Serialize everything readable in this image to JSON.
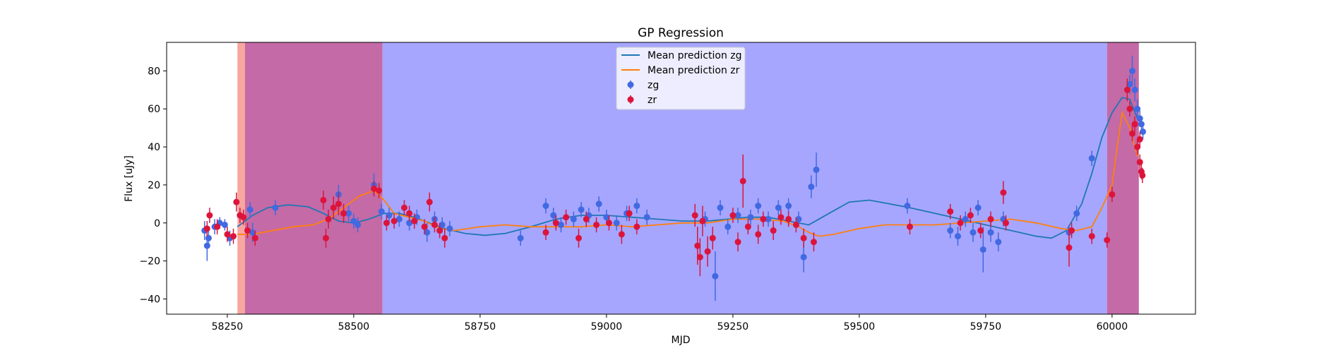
{
  "chart_data": {
    "type": "line",
    "title": "GP Regression",
    "xlabel": "MJD",
    "ylabel": "Flux [uJy]",
    "xlim": [
      58130,
      60165
    ],
    "ylim": [
      -48,
      95
    ],
    "xticks": [
      58250,
      58500,
      58750,
      59000,
      59250,
      59500,
      59750,
      60000
    ],
    "yticks": [
      -40,
      -20,
      0,
      20,
      40,
      60,
      80
    ],
    "grid": false,
    "legend_position": "top-center",
    "colors": {
      "zg_line": "#1f77b4",
      "zr_line": "#ff7f0e",
      "zg_points": "#4169e1",
      "zr_points": "#dc143c",
      "zg_band": "#a6a6ff",
      "zr_band": "#f8a6a0",
      "overlap_band": "#c46aa6"
    },
    "shaded_regions": [
      {
        "band": "zr",
        "x": [
          58270,
          58285
        ]
      },
      {
        "band": "overlap",
        "x": [
          58285,
          58557
        ]
      },
      {
        "band": "zg",
        "x": [
          58557,
          59990
        ]
      },
      {
        "band": "overlap",
        "x": [
          59990,
          60053
        ]
      }
    ],
    "series": [
      {
        "name": "Mean prediction zg",
        "kind": "line",
        "x": [
          58270,
          58300,
          58330,
          58370,
          58410,
          58440,
          58470,
          58500,
          58530,
          58560,
          58590,
          58620,
          58650,
          58680,
          58720,
          58760,
          58800,
          58850,
          58900,
          58950,
          59000,
          59050,
          59100,
          59150,
          59200,
          59240,
          59280,
          59320,
          59360,
          59400,
          59440,
          59480,
          59520,
          59560,
          59600,
          59650,
          59700,
          59750,
          59800,
          59850,
          59880,
          59910,
          59940,
          59960,
          59980,
          60000,
          60020,
          60035,
          60050
        ],
        "y": [
          -2,
          4,
          8,
          9.5,
          8.5,
          5,
          1,
          0,
          2,
          5,
          5,
          3,
          0,
          -3,
          -5.5,
          -6.5,
          -5.5,
          -2,
          2,
          4,
          4,
          3,
          2,
          1,
          1,
          2,
          3,
          3,
          1,
          -1,
          5,
          11,
          12,
          10,
          8,
          5,
          2,
          -1,
          -4,
          -7,
          -8,
          -4,
          10,
          26,
          45,
          58,
          66,
          65,
          55
        ]
      },
      {
        "name": "Mean prediction zr",
        "kind": "line",
        "x": [
          58270,
          58300,
          58340,
          58380,
          58420,
          58450,
          58480,
          58510,
          58540,
          58560,
          58580,
          58610,
          58640,
          58670,
          58700,
          58750,
          58800,
          58850,
          58900,
          58950,
          59000,
          59050,
          59100,
          59150,
          59200,
          59250,
          59300,
          59350,
          59380,
          59400,
          59420,
          59450,
          59500,
          59550,
          59600,
          59650,
          59700,
          59750,
          59800,
          59850,
          59900,
          59930,
          59960,
          59980,
          60000,
          60010,
          60020,
          60035,
          60050
        ],
        "y": [
          -6,
          -6,
          -4,
          -2,
          -1,
          2,
          8,
          14,
          17,
          12,
          5,
          3,
          1,
          -3,
          -4,
          -2,
          -1,
          -2,
          -2,
          -2,
          -1,
          -2,
          -1,
          0,
          0,
          2,
          2,
          1,
          -2,
          -5,
          -7,
          -6,
          -3,
          -1,
          -1,
          -1,
          0,
          1,
          2,
          0,
          -3,
          -4,
          -2,
          8,
          20,
          40,
          58,
          50,
          35
        ]
      },
      {
        "name": "zg",
        "kind": "errorbar",
        "points": [
          {
            "x": 58205,
            "y": -4,
            "e": 5
          },
          {
            "x": 58210,
            "y": -12,
            "e": 8
          },
          {
            "x": 58213,
            "y": -8,
            "e": 5
          },
          {
            "x": 58225,
            "y": -2,
            "e": 4
          },
          {
            "x": 58235,
            "y": 0,
            "e": 3
          },
          {
            "x": 58245,
            "y": -1,
            "e": 3
          },
          {
            "x": 58255,
            "y": -8,
            "e": 4
          },
          {
            "x": 58275,
            "y": 4,
            "e": 4
          },
          {
            "x": 58295,
            "y": 7,
            "e": 4
          },
          {
            "x": 58300,
            "y": -5,
            "e": 5
          },
          {
            "x": 58345,
            "y": 8,
            "e": 4
          },
          {
            "x": 58470,
            "y": 15,
            "e": 5
          },
          {
            "x": 58490,
            "y": 5,
            "e": 4
          },
          {
            "x": 58500,
            "y": 1,
            "e": 4
          },
          {
            "x": 58508,
            "y": -1,
            "e": 4
          },
          {
            "x": 58540,
            "y": 20,
            "e": 6
          },
          {
            "x": 58555,
            "y": 6,
            "e": 4
          },
          {
            "x": 58570,
            "y": 4,
            "e": 4
          },
          {
            "x": 58590,
            "y": 2,
            "e": 4
          },
          {
            "x": 58610,
            "y": 0,
            "e": 4
          },
          {
            "x": 58625,
            "y": 3,
            "e": 4
          },
          {
            "x": 58645,
            "y": -5,
            "e": 5
          },
          {
            "x": 58660,
            "y": 2,
            "e": 4
          },
          {
            "x": 58675,
            "y": -1,
            "e": 4
          },
          {
            "x": 58690,
            "y": -3,
            "e": 4
          },
          {
            "x": 58830,
            "y": -8,
            "e": 4
          },
          {
            "x": 58880,
            "y": 9,
            "e": 4
          },
          {
            "x": 58895,
            "y": 4,
            "e": 4
          },
          {
            "x": 58910,
            "y": -1,
            "e": 4
          },
          {
            "x": 58935,
            "y": 2,
            "e": 4
          },
          {
            "x": 58950,
            "y": 7,
            "e": 4
          },
          {
            "x": 58965,
            "y": 4,
            "e": 4
          },
          {
            "x": 58985,
            "y": 10,
            "e": 4
          },
          {
            "x": 59000,
            "y": 3,
            "e": 4
          },
          {
            "x": 59020,
            "y": 0,
            "e": 4
          },
          {
            "x": 59040,
            "y": 5,
            "e": 4
          },
          {
            "x": 59060,
            "y": 9,
            "e": 4
          },
          {
            "x": 59080,
            "y": 3,
            "e": 4
          },
          {
            "x": 59195,
            "y": 2,
            "e": 4
          },
          {
            "x": 59215,
            "y": -28,
            "e": 13
          },
          {
            "x": 59225,
            "y": 8,
            "e": 4
          },
          {
            "x": 59240,
            "y": -2,
            "e": 4
          },
          {
            "x": 59260,
            "y": 4,
            "e": 4
          },
          {
            "x": 59285,
            "y": 3,
            "e": 4
          },
          {
            "x": 59300,
            "y": 9,
            "e": 4
          },
          {
            "x": 59320,
            "y": 2,
            "e": 4
          },
          {
            "x": 59340,
            "y": 8,
            "e": 4
          },
          {
            "x": 59360,
            "y": 9,
            "e": 4
          },
          {
            "x": 59380,
            "y": 2,
            "e": 4
          },
          {
            "x": 59390,
            "y": -18,
            "e": 8
          },
          {
            "x": 59405,
            "y": 19,
            "e": 6
          },
          {
            "x": 59415,
            "y": 28,
            "e": 9
          },
          {
            "x": 59595,
            "y": 9,
            "e": 4
          },
          {
            "x": 59680,
            "y": -4,
            "e": 4
          },
          {
            "x": 59695,
            "y": -7,
            "e": 5
          },
          {
            "x": 59710,
            "y": 2,
            "e": 4
          },
          {
            "x": 59725,
            "y": -5,
            "e": 5
          },
          {
            "x": 59735,
            "y": 8,
            "e": 4
          },
          {
            "x": 59745,
            "y": -14,
            "e": 12
          },
          {
            "x": 59760,
            "y": -5,
            "e": 5
          },
          {
            "x": 59775,
            "y": -10,
            "e": 5
          },
          {
            "x": 59785,
            "y": 2,
            "e": 4
          },
          {
            "x": 59915,
            "y": -5,
            "e": 4
          },
          {
            "x": 59930,
            "y": 5,
            "e": 4
          },
          {
            "x": 59960,
            "y": 34,
            "e": 4
          },
          {
            "x": 60035,
            "y": 73,
            "e": 5
          },
          {
            "x": 60040,
            "y": 80,
            "e": 8
          },
          {
            "x": 60045,
            "y": 70,
            "e": 6
          },
          {
            "x": 60050,
            "y": 60,
            "e": 5
          },
          {
            "x": 60055,
            "y": 55,
            "e": 4
          },
          {
            "x": 60058,
            "y": 52,
            "e": 4
          },
          {
            "x": 60061,
            "y": 48,
            "e": 4
          }
        ]
      },
      {
        "name": "zr",
        "kind": "errorbar",
        "points": [
          {
            "x": 58210,
            "y": -3,
            "e": 4
          },
          {
            "x": 58215,
            "y": 4,
            "e": 4
          },
          {
            "x": 58230,
            "y": -2,
            "e": 4
          },
          {
            "x": 58250,
            "y": -6,
            "e": 4
          },
          {
            "x": 58262,
            "y": -7,
            "e": 4
          },
          {
            "x": 58268,
            "y": 11,
            "e": 5
          },
          {
            "x": 58275,
            "y": 4,
            "e": 4
          },
          {
            "x": 58282,
            "y": 3,
            "e": 4
          },
          {
            "x": 58290,
            "y": -4,
            "e": 4
          },
          {
            "x": 58305,
            "y": -8,
            "e": 4
          },
          {
            "x": 58440,
            "y": 12,
            "e": 5
          },
          {
            "x": 58445,
            "y": -8,
            "e": 5
          },
          {
            "x": 58450,
            "y": 2,
            "e": 5
          },
          {
            "x": 58460,
            "y": 8,
            "e": 6
          },
          {
            "x": 58470,
            "y": 10,
            "e": 6
          },
          {
            "x": 58480,
            "y": 5,
            "e": 5
          },
          {
            "x": 58540,
            "y": 18,
            "e": 4
          },
          {
            "x": 58550,
            "y": 17,
            "e": 4
          },
          {
            "x": 58565,
            "y": 0,
            "e": 4
          },
          {
            "x": 58580,
            "y": 1,
            "e": 4
          },
          {
            "x": 58600,
            "y": 8,
            "e": 4
          },
          {
            "x": 58610,
            "y": 5,
            "e": 4
          },
          {
            "x": 58620,
            "y": 1,
            "e": 4
          },
          {
            "x": 58640,
            "y": -2,
            "e": 4
          },
          {
            "x": 58650,
            "y": 11,
            "e": 5
          },
          {
            "x": 58660,
            "y": -1,
            "e": 4
          },
          {
            "x": 58670,
            "y": -4,
            "e": 4
          },
          {
            "x": 58680,
            "y": -8,
            "e": 5
          },
          {
            "x": 58880,
            "y": -5,
            "e": 4
          },
          {
            "x": 58900,
            "y": 0,
            "e": 4
          },
          {
            "x": 58920,
            "y": 3,
            "e": 4
          },
          {
            "x": 58945,
            "y": -8,
            "e": 5
          },
          {
            "x": 58960,
            "y": 2,
            "e": 4
          },
          {
            "x": 58980,
            "y": -1,
            "e": 4
          },
          {
            "x": 59005,
            "y": 0,
            "e": 4
          },
          {
            "x": 59030,
            "y": -6,
            "e": 5
          },
          {
            "x": 59045,
            "y": 5,
            "e": 4
          },
          {
            "x": 59060,
            "y": -2,
            "e": 4
          },
          {
            "x": 59175,
            "y": 4,
            "e": 6
          },
          {
            "x": 59180,
            "y": -12,
            "e": 10
          },
          {
            "x": 59185,
            "y": -18,
            "e": 10
          },
          {
            "x": 59190,
            "y": 1,
            "e": 8
          },
          {
            "x": 59200,
            "y": -15,
            "e": 8
          },
          {
            "x": 59210,
            "y": -8,
            "e": 6
          },
          {
            "x": 59250,
            "y": 4,
            "e": 4
          },
          {
            "x": 59260,
            "y": -10,
            "e": 5
          },
          {
            "x": 59270,
            "y": 22,
            "e": 14
          },
          {
            "x": 59280,
            "y": -2,
            "e": 4
          },
          {
            "x": 59300,
            "y": -6,
            "e": 5
          },
          {
            "x": 59310,
            "y": 2,
            "e": 4
          },
          {
            "x": 59330,
            "y": -4,
            "e": 5
          },
          {
            "x": 59345,
            "y": 3,
            "e": 4
          },
          {
            "x": 59360,
            "y": 2,
            "e": 4
          },
          {
            "x": 59375,
            "y": -1,
            "e": 4
          },
          {
            "x": 59390,
            "y": -8,
            "e": 5
          },
          {
            "x": 59410,
            "y": -10,
            "e": 5
          },
          {
            "x": 59600,
            "y": -2,
            "e": 4
          },
          {
            "x": 59680,
            "y": 6,
            "e": 4
          },
          {
            "x": 59700,
            "y": 0,
            "e": 4
          },
          {
            "x": 59720,
            "y": 4,
            "e": 4
          },
          {
            "x": 59740,
            "y": -4,
            "e": 4
          },
          {
            "x": 59760,
            "y": 2,
            "e": 4
          },
          {
            "x": 59785,
            "y": 16,
            "e": 6
          },
          {
            "x": 59790,
            "y": 0,
            "e": 4
          },
          {
            "x": 59915,
            "y": -13,
            "e": 10
          },
          {
            "x": 59920,
            "y": -4,
            "e": 4
          },
          {
            "x": 59960,
            "y": -7,
            "e": 4
          },
          {
            "x": 59990,
            "y": -9,
            "e": 4
          },
          {
            "x": 60000,
            "y": 15,
            "e": 4
          },
          {
            "x": 60030,
            "y": 70,
            "e": 6
          },
          {
            "x": 60035,
            "y": 60,
            "e": 4
          },
          {
            "x": 60040,
            "y": 47,
            "e": 4
          },
          {
            "x": 60045,
            "y": 52,
            "e": 4
          },
          {
            "x": 60050,
            "y": 40,
            "e": 4
          },
          {
            "x": 60055,
            "y": 32,
            "e": 4
          },
          {
            "x": 60058,
            "y": 27,
            "e": 4
          },
          {
            "x": 60060,
            "y": 25,
            "e": 4
          },
          {
            "x": 60055,
            "y": 44,
            "e": 4
          }
        ]
      }
    ]
  }
}
